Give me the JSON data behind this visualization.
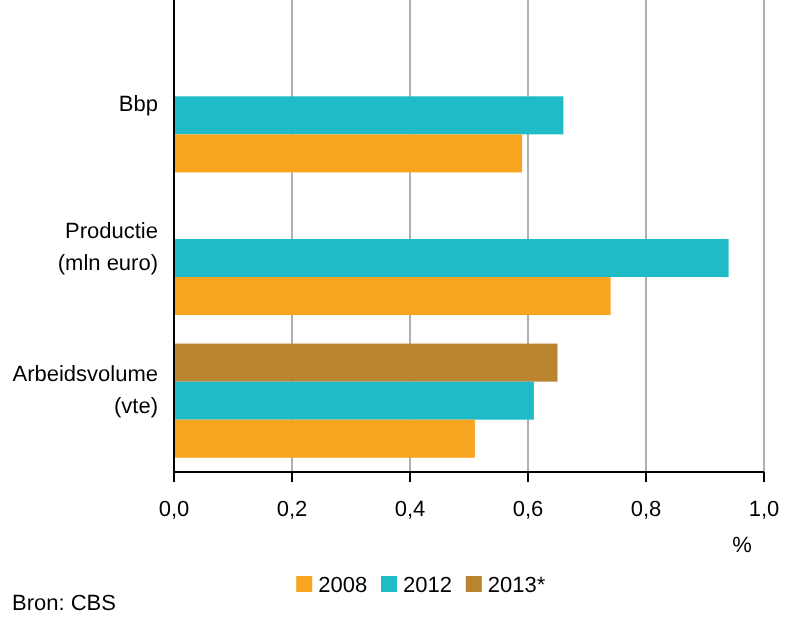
{
  "chart_data": {
    "type": "bar",
    "orientation": "horizontal",
    "categories": [
      "Bbp",
      "Productie (mln euro)",
      "Arbeidsvolume (vte)"
    ],
    "series": [
      {
        "name": "2013*",
        "color": "#bb8530",
        "values": [
          null,
          null,
          0.65
        ]
      },
      {
        "name": "2012",
        "color": "#1fbbc6",
        "values": [
          0.66,
          0.94,
          0.61
        ]
      },
      {
        "name": "2008",
        "color": "#f7a520",
        "values": [
          0.59,
          0.74,
          0.51
        ]
      }
    ],
    "xlim": [
      0,
      1
    ],
    "xticks": [
      {
        "value": 0,
        "label": "0,0"
      },
      {
        "value": 0.2,
        "label": "0,2"
      },
      {
        "value": 0.4,
        "label": "0,4"
      },
      {
        "value": 0.6,
        "label": "0,6"
      },
      {
        "value": 0.8,
        "label": "0,8"
      },
      {
        "value": 1,
        "label": "1,0"
      }
    ],
    "xlabel": "%",
    "grid": "x",
    "legend": "bottom",
    "annotations": [
      "Bron: CBS"
    ]
  }
}
